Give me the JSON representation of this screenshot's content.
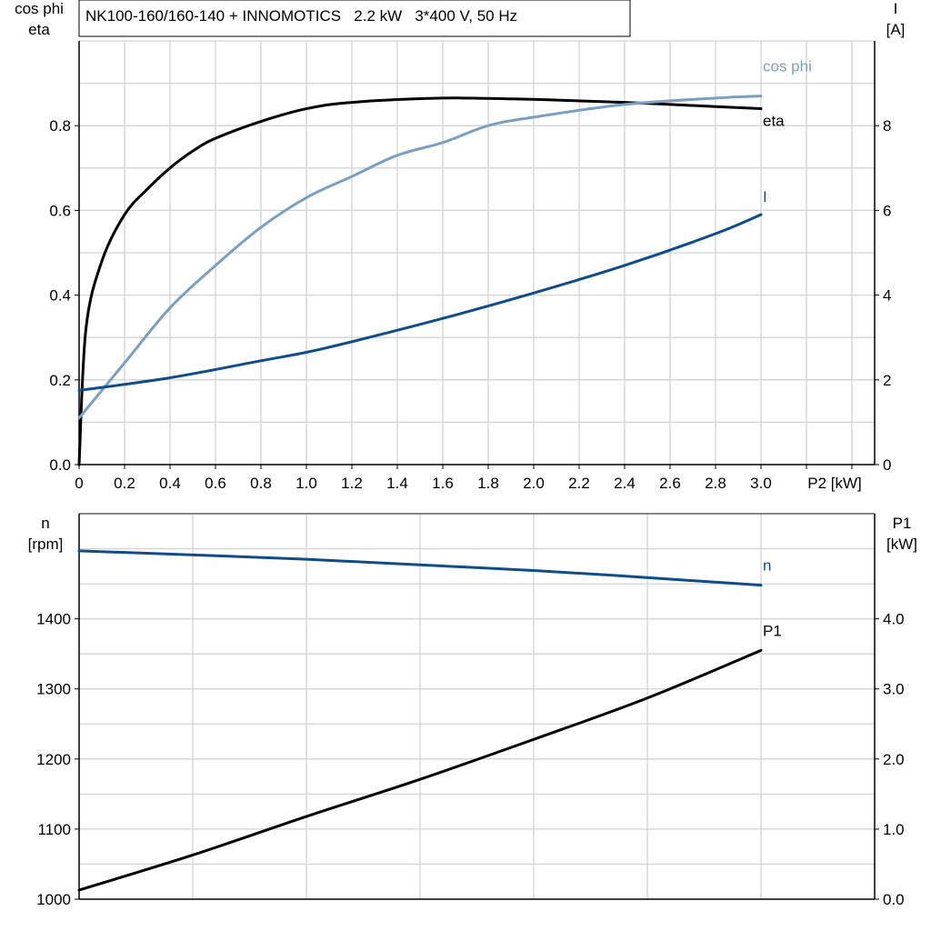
{
  "title": "NK100-160/160-140 + INNOMOTICS   2.2 kW   3*400 V, 50 Hz",
  "chart_data": [
    {
      "type": "line",
      "xlabel": "P2 [kW]",
      "xlim": [
        0,
        3.5
      ],
      "x_ticks": [
        "0",
        "0.2",
        "0.4",
        "0.6",
        "0.8",
        "1.0",
        "1.2",
        "1.4",
        "1.6",
        "1.8",
        "2.0",
        "2.2",
        "2.4",
        "2.6",
        "2.8",
        "3.0"
      ],
      "y_left": {
        "label": [
          "cos phi",
          "eta"
        ],
        "lim": [
          0,
          1.0
        ],
        "ticks": [
          "0.0",
          "0.2",
          "0.4",
          "0.6",
          "0.8"
        ]
      },
      "y_right": {
        "label": [
          "I",
          "[A]"
        ],
        "lim": [
          0,
          10
        ],
        "ticks": [
          "0",
          "2",
          "4",
          "6",
          "8"
        ]
      },
      "grid": true,
      "series": [
        {
          "name": "eta",
          "axis": "left",
          "color": "#000000",
          "x": [
            0,
            0.03,
            0.1,
            0.2,
            0.3,
            0.4,
            0.5,
            0.6,
            0.8,
            1.0,
            1.2,
            1.6,
            2.0,
            2.4,
            2.8,
            3.0
          ],
          "y": [
            0,
            0.32,
            0.48,
            0.59,
            0.65,
            0.7,
            0.74,
            0.77,
            0.81,
            0.84,
            0.855,
            0.865,
            0.862,
            0.855,
            0.845,
            0.84
          ]
        },
        {
          "name": "cos phi",
          "axis": "left",
          "color": "#7a9fc0",
          "x": [
            0,
            0.2,
            0.4,
            0.6,
            0.8,
            1.0,
            1.2,
            1.4,
            1.6,
            1.8,
            2.0,
            2.4,
            2.8,
            3.0
          ],
          "y": [
            0.11,
            0.24,
            0.37,
            0.47,
            0.56,
            0.63,
            0.68,
            0.73,
            0.76,
            0.8,
            0.82,
            0.85,
            0.865,
            0.87
          ]
        },
        {
          "name": "I",
          "axis": "right",
          "color": "#0f4c8a",
          "x": [
            0,
            0.4,
            0.8,
            1.0,
            1.2,
            1.6,
            2.0,
            2.4,
            2.8,
            3.0
          ],
          "y": [
            1.75,
            2.05,
            2.45,
            2.65,
            2.9,
            3.45,
            4.05,
            4.7,
            5.45,
            5.9
          ]
        }
      ]
    },
    {
      "type": "line",
      "xlim": [
        0,
        3.5
      ],
      "y_left": {
        "label": [
          "n",
          "[rpm]"
        ],
        "lim": [
          1000,
          1550
        ],
        "ticks": [
          "1000",
          "1100",
          "1200",
          "1300",
          "1400"
        ]
      },
      "y_right": {
        "label": [
          "P1",
          "[kW]"
        ],
        "lim": [
          0,
          5.5
        ],
        "ticks": [
          "0.0",
          "1.0",
          "2.0",
          "3.0",
          "4.0"
        ]
      },
      "grid": true,
      "series": [
        {
          "name": "n",
          "axis": "left",
          "color": "#0f4c8a",
          "x": [
            0,
            1.0,
            2.0,
            3.0
          ],
          "y": [
            1497,
            1485,
            1469,
            1448
          ]
        },
        {
          "name": "P1",
          "axis": "right",
          "color": "#000000",
          "x": [
            0,
            0.5,
            1.0,
            1.5,
            2.0,
            2.5,
            3.0
          ],
          "y": [
            0.13,
            0.63,
            1.18,
            1.71,
            2.28,
            2.87,
            3.55
          ]
        }
      ]
    }
  ]
}
